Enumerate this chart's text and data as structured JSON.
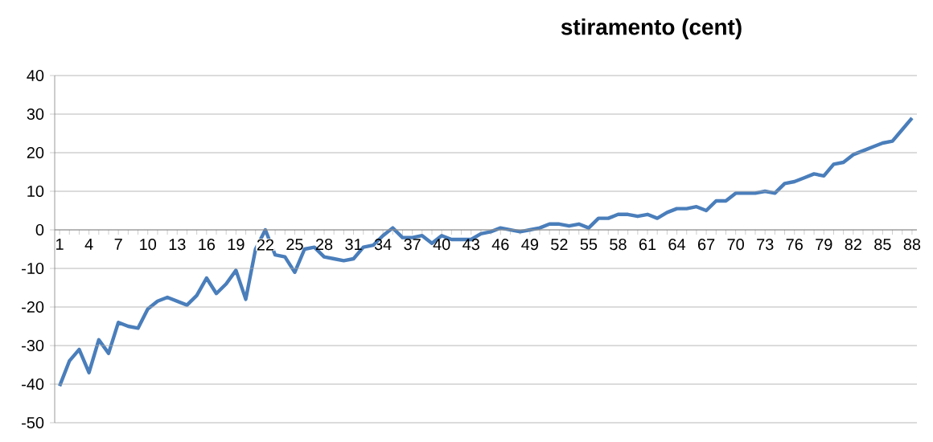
{
  "chart_data": {
    "type": "line",
    "title": "stiramento (cent)",
    "categories": [
      "1",
      null,
      null,
      "4",
      null,
      null,
      "7",
      null,
      null,
      "10",
      null,
      null,
      "13",
      null,
      null,
      "16",
      null,
      null,
      "19",
      null,
      null,
      "22",
      null,
      null,
      "25",
      null,
      null,
      "28",
      null,
      null,
      "31",
      null,
      null,
      "34",
      null,
      null,
      "37",
      null,
      null,
      "40",
      null,
      null,
      "43",
      null,
      null,
      "46",
      null,
      null,
      "49",
      null,
      null,
      "52",
      null,
      null,
      "55",
      null,
      null,
      "58",
      null,
      null,
      "61",
      null,
      null,
      "64",
      null,
      null,
      "67",
      null,
      null,
      "70",
      null,
      null,
      "73",
      null,
      null,
      "76",
      null,
      null,
      "79",
      null,
      null,
      "82",
      null,
      null,
      "85",
      null,
      null,
      "88"
    ],
    "series": [
      {
        "color": "#4a7ebb",
        "values": [
          -40.5,
          -34,
          -31,
          -37,
          -28.5,
          -32,
          -24,
          -25,
          -25.5,
          -20.5,
          -18.5,
          -17.5,
          -18.5,
          -19.5,
          -17,
          -12.5,
          -16.5,
          -14,
          -10.5,
          -18,
          -5,
          0,
          -6.5,
          -7,
          -11,
          -5,
          -4.5,
          -7,
          -7.5,
          -8,
          -7.5,
          -4.5,
          -4,
          -1.5,
          0.5,
          -2,
          -2,
          -1.5,
          -3.5,
          -1.5,
          -2.5,
          -2.5,
          -2.5,
          -1,
          -0.5,
          0.5,
          0,
          -0.5,
          0,
          0.5,
          1.5,
          1.5,
          1,
          1.5,
          0.5,
          3,
          3,
          4,
          4,
          3.5,
          4,
          3,
          4.5,
          5.5,
          5.5,
          6,
          5,
          7.5,
          7.5,
          9.5,
          9.5,
          9.5,
          10,
          9.5,
          12,
          12.5,
          13.5,
          14.5,
          14,
          17,
          17.5,
          19.5,
          20.5,
          21.5,
          22.5,
          23,
          26,
          29
        ]
      }
    ],
    "ylim": [
      -50,
      40
    ],
    "yticks": [
      -50,
      -40,
      -30,
      -20,
      -10,
      0,
      10,
      20,
      30,
      40
    ],
    "grid": "y"
  }
}
